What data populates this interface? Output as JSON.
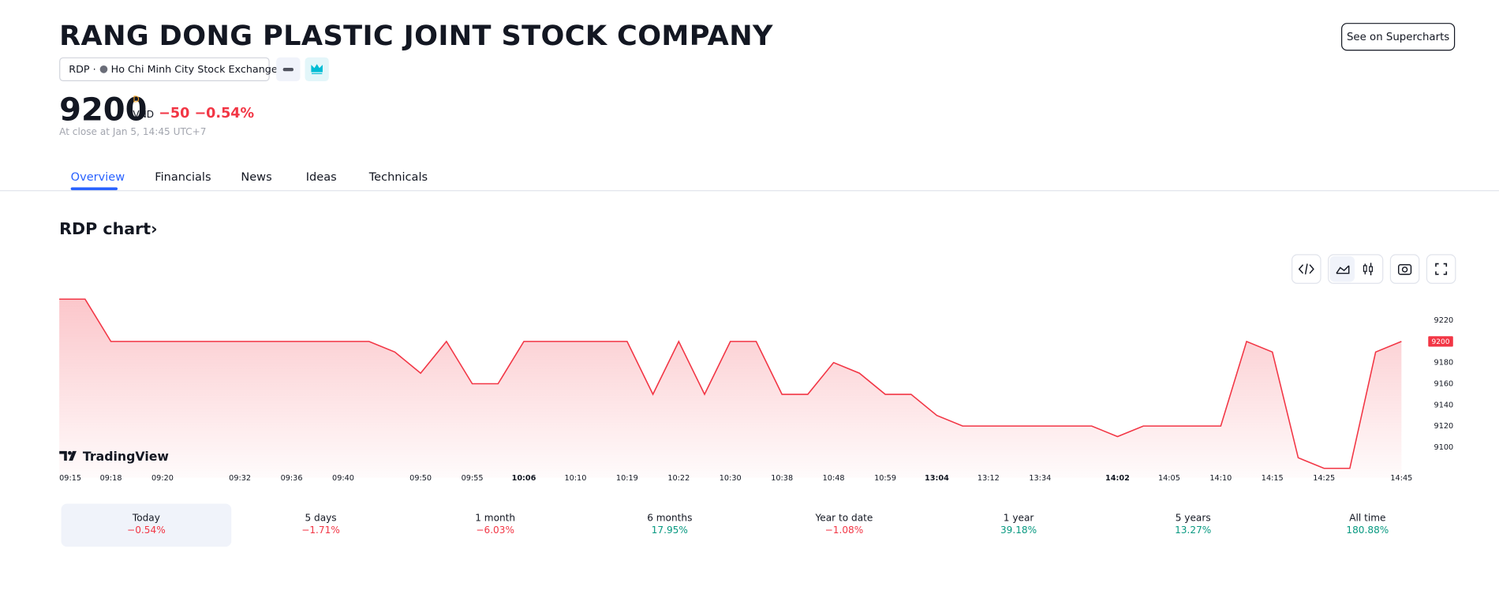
{
  "header": {
    "title": "RANG DONG PLASTIC JOINT STOCK COMPANY",
    "symbol": "RDP",
    "exchange": "Ho Chi Minh City Stock Exchange",
    "button": "See on Supercharts",
    "price": "9200",
    "price_flag": "D",
    "currency": "VND",
    "change": "−50",
    "change_pct": "−0.54%",
    "close_note": "At close at Jan 5, 14:45 UTC+7"
  },
  "tabs": [
    "Overview",
    "Financials",
    "News",
    "Ideas",
    "Technicals"
  ],
  "section_title": "RDP chart›",
  "brand": "TradingView",
  "chart_data": {
    "type": "line",
    "color": "#f23645",
    "categories": [
      "09:15",
      null,
      "09:18",
      null,
      "09:20",
      null,
      null,
      "09:32",
      null,
      "09:36",
      null,
      "09:40",
      null,
      null,
      "09:50",
      null,
      "09:55",
      null,
      "10:06",
      null,
      "10:10",
      null,
      "10:19",
      null,
      "10:22",
      null,
      "10:30",
      null,
      "10:38",
      null,
      "10:48",
      null,
      "10:59",
      null,
      "13:04",
      null,
      "13:12",
      null,
      "13:34",
      null,
      null,
      "14:02",
      null,
      "14:05",
      null,
      "14:10",
      null,
      "14:15",
      null,
      "14:25",
      null,
      null,
      "14:45"
    ],
    "values": [
      9240,
      9240,
      9200,
      9200,
      9200,
      9200,
      9200,
      9200,
      9200,
      9200,
      9200,
      9200,
      9200,
      9190,
      9170,
      9200,
      9160,
      9160,
      9200,
      9200,
      9200,
      9200,
      9200,
      9150,
      9200,
      9150,
      9200,
      9200,
      9150,
      9150,
      9180,
      9170,
      9150,
      9150,
      9130,
      9120,
      9120,
      9120,
      9120,
      9120,
      9120,
      9110,
      9120,
      9120,
      9120,
      9120,
      9200,
      9190,
      9090,
      9080,
      9080,
      9190,
      9200
    ],
    "ylim": [
      9080,
      9240
    ],
    "yticks": [
      9100,
      9120,
      9140,
      9160,
      9180,
      9200,
      9220
    ]
  },
  "periods": [
    {
      "label": "Today",
      "change": "−0.54%"
    },
    {
      "label": "5 days",
      "change": "−1.71%"
    },
    {
      "label": "1 month",
      "change": "−6.03%"
    },
    {
      "label": "6 months",
      "change": "17.95%"
    },
    {
      "label": "Year to date",
      "change": "−1.08%"
    },
    {
      "label": "1 year",
      "change": "39.18%"
    },
    {
      "label": "5 years",
      "change": "13.27%"
    },
    {
      "label": "All time",
      "change": "180.88%"
    }
  ]
}
